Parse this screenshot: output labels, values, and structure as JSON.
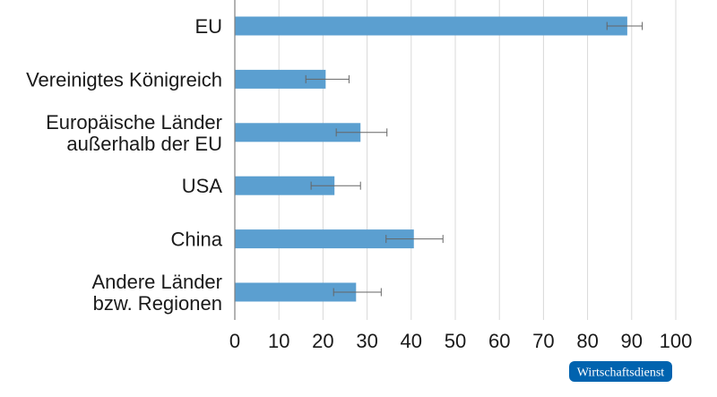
{
  "chart_data": {
    "type": "bar",
    "orientation": "horizontal",
    "categories": [
      [
        "EU"
      ],
      [
        "Vereinigtes Königreich"
      ],
      [
        "Europäische Länder",
        "außerhalb der EU"
      ],
      [
        "USA"
      ],
      [
        "China"
      ],
      [
        "Andere Länder",
        "bzw. Regionen"
      ]
    ],
    "values": [
      89.0,
      20.6,
      28.5,
      22.6,
      40.6,
      27.5
    ],
    "error_low": [
      84.4,
      16.1,
      23.0,
      17.3,
      34.3,
      22.4
    ],
    "error_high": [
      92.4,
      25.9,
      34.5,
      28.5,
      47.2,
      33.2
    ],
    "xlim": [
      0,
      100
    ],
    "xticks": [
      0,
      10,
      20,
      30,
      40,
      50,
      60,
      70,
      80,
      90,
      100
    ],
    "grid": true,
    "colors": {
      "bar": "#5b9fd0",
      "error": "#666666",
      "grid": "#d9d9d9",
      "axis": "#808080"
    }
  },
  "badge": {
    "label": "Wirtschaftsdienst",
    "color": "#0063af"
  }
}
